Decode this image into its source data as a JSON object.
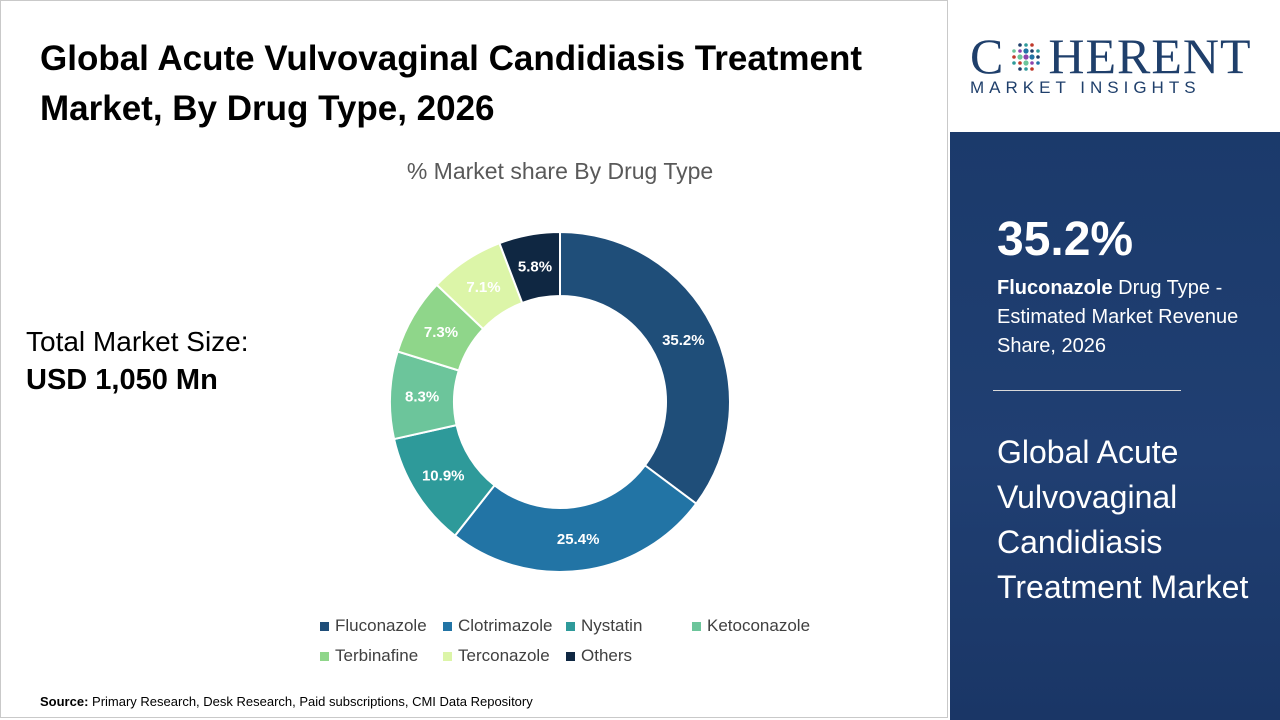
{
  "title": "Global Acute Vulvovaginal Candidiasis Treatment Market, By Drug Type, 2026",
  "chart_subtitle": "% Market share By Drug Type",
  "total_label": "Total Market Size:",
  "total_value": "USD 1,050 Mn",
  "source_label": "Source:",
  "source_text": "Primary Research, Desk Research, Paid subscriptions, CMI Data Repository",
  "logo": {
    "top_left": "C",
    "top_right": "HERENT",
    "bottom": "MARKET INSIGHTS"
  },
  "panel": {
    "highlight": "35.2%",
    "desc_bold": "Fluconazole",
    "desc_rest": " Drug Type - Estimated Market Revenue Share, 2026",
    "market_name": "Global Acute Vulvovaginal Candidiasis Treatment Market"
  },
  "colors": {
    "panel_bg": "#1b3a6b",
    "logo_text": "#1f3f6b"
  },
  "chart_data": {
    "type": "pie",
    "variant": "donut",
    "title": "% Market share By Drug Type",
    "categories": [
      "Fluconazole",
      "Clotrimazole",
      "Nystatin",
      "Ketoconazole",
      "Terbinafine",
      "Terconazole",
      "Others"
    ],
    "values": [
      35.2,
      25.4,
      10.9,
      8.3,
      7.3,
      7.1,
      5.8
    ],
    "labels": [
      "35.2%",
      "25.4%",
      "10.9%",
      "8.3%",
      "7.3%",
      "7.1%",
      "5.8%"
    ],
    "colors": [
      "#1f4e79",
      "#2274a5",
      "#2e9a9a",
      "#6cc59b",
      "#8fd68a",
      "#dcf5a8",
      "#0f2742"
    ],
    "label_colors": [
      "#ffffff",
      "#ffffff",
      "#ffffff",
      "#ffffff",
      "#ffffff",
      "#ffffff",
      "#ffffff"
    ],
    "legend_position": "bottom"
  }
}
